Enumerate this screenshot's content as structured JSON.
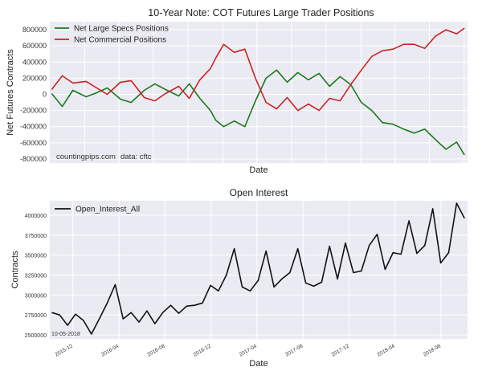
{
  "chart_data": [
    {
      "type": "line",
      "title": "10-Year Note: COT Futures Large Trader Positions",
      "xlabel": "Date",
      "ylabel": "Net Futures Contracts",
      "ylim": [
        -850000,
        900000
      ],
      "yticks": [
        -800000,
        -600000,
        -400000,
        -200000,
        0,
        200000,
        400000,
        600000,
        800000
      ],
      "ytick_labels": [
        "-800000",
        "-600000",
        "-400000",
        "-200000",
        "0",
        "200000",
        "400000",
        "600000",
        "800000"
      ],
      "xlim": [
        "2015-10-01",
        "2018-10-10"
      ],
      "x_tick_labels_visible": false,
      "grid": true,
      "legend_position": "upper-left",
      "annotations": [
        "countingpips.com",
        "data: cftc"
      ],
      "series": [
        {
          "name": "Net Large Specs Positions",
          "color": "#1a7a1a",
          "x": [
            "2015-10-06",
            "2015-11-03",
            "2015-12-01",
            "2016-01-05",
            "2016-02-02",
            "2016-03-01",
            "2016-04-05",
            "2016-05-03",
            "2016-06-07",
            "2016-07-05",
            "2016-08-02",
            "2016-09-06",
            "2016-10-04",
            "2016-11-01",
            "2016-11-29",
            "2016-12-13",
            "2017-01-03",
            "2017-01-31",
            "2017-02-28",
            "2017-03-28",
            "2017-04-25",
            "2017-05-23",
            "2017-06-20",
            "2017-07-18",
            "2017-08-15",
            "2017-09-12",
            "2017-10-10",
            "2017-11-07",
            "2017-12-05",
            "2018-01-02",
            "2018-01-30",
            "2018-02-27",
            "2018-03-27",
            "2018-04-24",
            "2018-05-22",
            "2018-06-19",
            "2018-07-17",
            "2018-08-14",
            "2018-09-11",
            "2018-10-02"
          ],
          "values": [
            10000,
            -150000,
            50000,
            -30000,
            20000,
            80000,
            -60000,
            -100000,
            50000,
            130000,
            60000,
            -20000,
            130000,
            -50000,
            -200000,
            -320000,
            -400000,
            -330000,
            -400000,
            -80000,
            200000,
            300000,
            150000,
            270000,
            180000,
            260000,
            100000,
            220000,
            120000,
            -100000,
            -200000,
            -350000,
            -370000,
            -430000,
            -480000,
            -430000,
            -560000,
            -680000,
            -590000,
            -750000
          ]
        },
        {
          "name": "Net Commercial Positions",
          "color": "#cc2222",
          "x": [
            "2015-10-06",
            "2015-11-03",
            "2015-12-01",
            "2016-01-05",
            "2016-02-02",
            "2016-03-01",
            "2016-04-05",
            "2016-05-03",
            "2016-06-07",
            "2016-07-05",
            "2016-08-02",
            "2016-09-06",
            "2016-10-04",
            "2016-11-01",
            "2016-11-29",
            "2016-12-13",
            "2017-01-03",
            "2017-01-31",
            "2017-02-28",
            "2017-03-28",
            "2017-04-25",
            "2017-05-23",
            "2017-06-20",
            "2017-07-18",
            "2017-08-15",
            "2017-09-12",
            "2017-10-10",
            "2017-11-07",
            "2017-12-05",
            "2018-01-02",
            "2018-01-30",
            "2018-02-27",
            "2018-03-27",
            "2018-04-24",
            "2018-05-22",
            "2018-06-19",
            "2018-07-17",
            "2018-08-14",
            "2018-09-11",
            "2018-10-02"
          ],
          "values": [
            60000,
            230000,
            140000,
            160000,
            80000,
            0,
            150000,
            170000,
            -40000,
            -80000,
            10000,
            100000,
            -50000,
            180000,
            320000,
            450000,
            620000,
            520000,
            560000,
            200000,
            -100000,
            -180000,
            -40000,
            -200000,
            -120000,
            -200000,
            -50000,
            -80000,
            120000,
            300000,
            470000,
            540000,
            560000,
            620000,
            620000,
            570000,
            720000,
            800000,
            750000,
            820000
          ]
        }
      ]
    },
    {
      "type": "line",
      "title": "Open Interest",
      "xlabel": "Date",
      "ylabel": "Contracts",
      "ylim": [
        2450000,
        4180000
      ],
      "yticks": [
        2500000,
        2750000,
        3000000,
        3250000,
        3500000,
        3750000,
        4000000
      ],
      "ytick_labels": [
        "2500000",
        "2750000",
        "3000000",
        "3250000",
        "3500000",
        "3750000",
        "4000000"
      ],
      "xlim": [
        "2015-10-01",
        "2018-10-10"
      ],
      "xticks": [
        "2015-12-01",
        "2016-04-01",
        "2016-08-01",
        "2016-12-01",
        "2017-04-01",
        "2017-08-01",
        "2017-12-01",
        "2018-04-01",
        "2018-08-01"
      ],
      "xtick_labels": [
        "2015-12",
        "2016-04",
        "2016-08",
        "2016-12",
        "2017-04",
        "2017-08",
        "2017-12",
        "2018-04",
        "2018-08"
      ],
      "grid": true,
      "legend_position": "upper-left",
      "annotations": [
        "10-05-2018"
      ],
      "series": [
        {
          "name": "Open_Interest_All",
          "color": "#111111",
          "x": [
            "2015-10-06",
            "2015-10-27",
            "2015-11-17",
            "2015-12-08",
            "2015-12-29",
            "2016-01-19",
            "2016-02-09",
            "2016-03-01",
            "2016-03-22",
            "2016-04-12",
            "2016-05-03",
            "2016-05-24",
            "2016-06-14",
            "2016-07-05",
            "2016-07-26",
            "2016-08-16",
            "2016-09-06",
            "2016-09-27",
            "2016-10-18",
            "2016-11-08",
            "2016-11-29",
            "2016-12-20",
            "2017-01-10",
            "2017-01-31",
            "2017-02-21",
            "2017-03-14",
            "2017-04-04",
            "2017-04-25",
            "2017-05-16",
            "2017-06-06",
            "2017-06-27",
            "2017-07-18",
            "2017-08-08",
            "2017-08-29",
            "2017-09-19",
            "2017-10-10",
            "2017-10-31",
            "2017-11-21",
            "2017-12-12",
            "2018-01-02",
            "2018-01-23",
            "2018-02-13",
            "2018-03-06",
            "2018-03-27",
            "2018-04-17",
            "2018-05-08",
            "2018-05-29",
            "2018-06-19",
            "2018-07-10",
            "2018-07-31",
            "2018-08-21",
            "2018-09-11",
            "2018-10-02"
          ],
          "values": [
            2780000,
            2750000,
            2620000,
            2760000,
            2680000,
            2510000,
            2700000,
            2900000,
            3130000,
            2700000,
            2780000,
            2660000,
            2800000,
            2640000,
            2780000,
            2870000,
            2770000,
            2860000,
            2870000,
            2900000,
            3120000,
            3050000,
            3250000,
            3580000,
            3100000,
            3050000,
            3180000,
            3550000,
            3100000,
            3200000,
            3280000,
            3580000,
            3150000,
            3110000,
            3160000,
            3610000,
            3200000,
            3650000,
            3280000,
            3300000,
            3620000,
            3760000,
            3320000,
            3530000,
            3510000,
            3930000,
            3520000,
            3620000,
            4080000,
            3400000,
            3530000,
            4150000,
            3960000
          ]
        }
      ]
    }
  ]
}
